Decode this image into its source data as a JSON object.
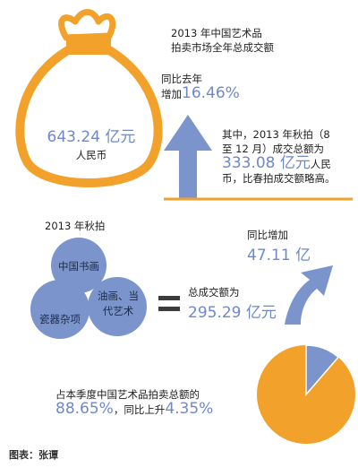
{
  "colors": {
    "orange": "#F2A12B",
    "blue": "#7B95CC",
    "accent": "#6E88C9",
    "line_orange": "#F2A12B"
  },
  "header": {
    "title_line1": "2013 年中国艺术品",
    "title_line2": "拍卖市场全年总成交额"
  },
  "total": {
    "amount": "643.24 亿元",
    "unit": "人民币"
  },
  "yoy": {
    "label": "同比去年",
    "prefix": "增加",
    "value": "16.46%"
  },
  "autumn_note": {
    "line1": "其中，2013 年秋拍（8",
    "line2": "至 12 月）成交总额为",
    "value": "333.08 亿元",
    "line3_suffix": "人民",
    "line4": "币，比春拍成交额略高。"
  },
  "autumn": {
    "title": "2013 年秋拍",
    "categories": [
      "中国书画",
      "瓷器杂项",
      "油画、当代艺术"
    ],
    "total_label": "总成交额为",
    "total_value": "295.29 亿元",
    "increase_label": "同比增加",
    "increase_value": "47.11 亿"
  },
  "share": {
    "label_line1": "占本季度中国艺术品拍卖总额的",
    "value": "88.65%",
    "mid": "，同比上升",
    "change": "4.35%",
    "pie_share": 0.8865
  },
  "credit": "图表：张谭"
}
